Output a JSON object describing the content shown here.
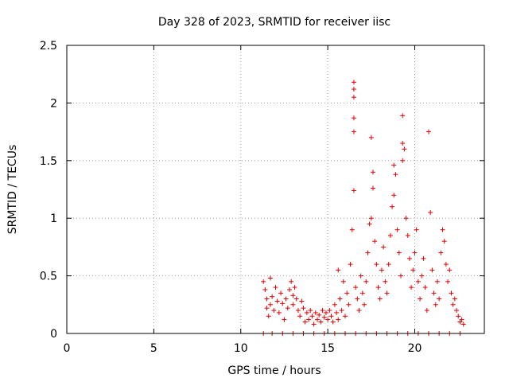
{
  "chart_data": {
    "type": "scatter",
    "title": "Day 328 of 2023, SRMTID for receiver iisc",
    "xlabel": "GPS time / hours",
    "ylabel": "SRMTID / TECUs",
    "xlim": [
      0,
      24
    ],
    "ylim": [
      0,
      2.5
    ],
    "xticks": [
      0,
      5,
      10,
      15,
      20
    ],
    "yticks": [
      0,
      0.5,
      1,
      1.5,
      2,
      2.5
    ],
    "xtick_labels": [
      "0",
      "5",
      "10",
      "15",
      "20"
    ],
    "ytick_labels": [
      "0",
      "0.5",
      "1",
      "1.5",
      "2",
      "2.5"
    ],
    "grid": true,
    "marker": "+",
    "color": "#e00000",
    "series": [
      {
        "name": "SRMTID",
        "points": [
          [
            11.3,
            0.45
          ],
          [
            11.4,
            0.38
          ],
          [
            11.5,
            0.3
          ],
          [
            11.5,
            0.22
          ],
          [
            11.6,
            0.15
          ],
          [
            11.7,
            0.48
          ],
          [
            11.7,
            0.25
          ],
          [
            11.8,
            0.32
          ],
          [
            11.9,
            0.2
          ],
          [
            12.0,
            0.4
          ],
          [
            12.1,
            0.28
          ],
          [
            12.2,
            0.18
          ],
          [
            12.3,
            0.35
          ],
          [
            12.4,
            0.26
          ],
          [
            12.5,
            0.12
          ],
          [
            12.6,
            0.3
          ],
          [
            12.7,
            0.22
          ],
          [
            12.8,
            0.38
          ],
          [
            12.9,
            0.45
          ],
          [
            13.0,
            0.33
          ],
          [
            13.0,
            0.25
          ],
          [
            13.1,
            0.4
          ],
          [
            13.2,
            0.3
          ],
          [
            13.3,
            0.2
          ],
          [
            13.4,
            0.15
          ],
          [
            13.5,
            0.28
          ],
          [
            13.6,
            0.22
          ],
          [
            13.7,
            0.1
          ],
          [
            13.8,
            0.18
          ],
          [
            13.9,
            0.12
          ],
          [
            14.0,
            0.2
          ],
          [
            14.1,
            0.15
          ],
          [
            14.2,
            0.08
          ],
          [
            14.3,
            0.18
          ],
          [
            14.4,
            0.12
          ],
          [
            14.5,
            0.16
          ],
          [
            14.6,
            0.1
          ],
          [
            14.7,
            0.2
          ],
          [
            14.8,
            0.14
          ],
          [
            14.9,
            0.18
          ],
          [
            15.0,
            0.12
          ],
          [
            15.1,
            0.2
          ],
          [
            15.2,
            0.15
          ],
          [
            15.3,
            0.1
          ],
          [
            15.4,
            0.25
          ],
          [
            15.5,
            0.18
          ],
          [
            15.6,
            0.12
          ],
          [
            15.6,
            0.55
          ],
          [
            15.7,
            0.3
          ],
          [
            15.8,
            0.2
          ],
          [
            15.9,
            0.45
          ],
          [
            16.0,
            0.15
          ],
          [
            16.1,
            0.35
          ],
          [
            16.2,
            0.25
          ],
          [
            16.3,
            0.6
          ],
          [
            16.4,
            0.9
          ],
          [
            16.5,
            1.24
          ],
          [
            16.5,
            1.75
          ],
          [
            16.5,
            1.87
          ],
          [
            16.5,
            2.05
          ],
          [
            16.5,
            2.12
          ],
          [
            16.5,
            2.18
          ],
          [
            16.6,
            0.4
          ],
          [
            16.7,
            0.3
          ],
          [
            16.8,
            0.2
          ],
          [
            16.9,
            0.5
          ],
          [
            17.0,
            0.35
          ],
          [
            17.1,
            0.25
          ],
          [
            17.2,
            0.45
          ],
          [
            17.3,
            0.7
          ],
          [
            17.4,
            0.95
          ],
          [
            17.5,
            1.0
          ],
          [
            17.5,
            1.7
          ],
          [
            17.6,
            1.4
          ],
          [
            17.6,
            1.26
          ],
          [
            17.7,
            0.8
          ],
          [
            17.8,
            0.6
          ],
          [
            17.9,
            0.4
          ],
          [
            18.0,
            0.3
          ],
          [
            18.1,
            0.55
          ],
          [
            18.2,
            0.75
          ],
          [
            18.3,
            0.45
          ],
          [
            18.4,
            0.35
          ],
          [
            18.5,
            0.6
          ],
          [
            18.6,
            0.85
          ],
          [
            18.7,
            1.1
          ],
          [
            18.8,
            1.2
          ],
          [
            18.8,
            1.46
          ],
          [
            18.9,
            1.38
          ],
          [
            19.0,
            0.9
          ],
          [
            19.1,
            0.7
          ],
          [
            19.2,
            0.5
          ],
          [
            19.3,
            1.5
          ],
          [
            19.3,
            1.65
          ],
          [
            19.3,
            1.89
          ],
          [
            19.4,
            1.6
          ],
          [
            19.5,
            1.0
          ],
          [
            19.6,
            0.85
          ],
          [
            19.7,
            0.65
          ],
          [
            19.8,
            0.4
          ],
          [
            19.9,
            0.55
          ],
          [
            20.0,
            0.7
          ],
          [
            20.1,
            0.9
          ],
          [
            20.2,
            0.45
          ],
          [
            20.3,
            0.3
          ],
          [
            20.4,
            0.5
          ],
          [
            20.5,
            0.65
          ],
          [
            20.6,
            0.4
          ],
          [
            20.7,
            0.2
          ],
          [
            20.8,
            1.75
          ],
          [
            20.9,
            1.05
          ],
          [
            21.0,
            0.55
          ],
          [
            21.1,
            0.35
          ],
          [
            21.2,
            0.25
          ],
          [
            21.3,
            0.45
          ],
          [
            21.4,
            0.3
          ],
          [
            21.5,
            0.7
          ],
          [
            21.6,
            0.9
          ],
          [
            21.7,
            0.8
          ],
          [
            21.8,
            0.6
          ],
          [
            21.9,
            0.45
          ],
          [
            22.0,
            0.55
          ],
          [
            22.1,
            0.35
          ],
          [
            22.2,
            0.25
          ],
          [
            22.3,
            0.3
          ],
          [
            22.4,
            0.2
          ],
          [
            22.5,
            0.15
          ],
          [
            22.6,
            0.1
          ],
          [
            22.7,
            0.12
          ],
          [
            22.8,
            0.08
          ],
          [
            11.3,
            0.0
          ],
          [
            11.8,
            0.0
          ],
          [
            12.4,
            0.0
          ],
          [
            13.0,
            0.0
          ],
          [
            13.6,
            0.0
          ],
          [
            14.2,
            0.0
          ],
          [
            14.8,
            0.0
          ],
          [
            15.4,
            0.0
          ],
          [
            16.0,
            0.0
          ],
          [
            16.6,
            0.0
          ],
          [
            17.2,
            0.0
          ],
          [
            17.8,
            0.0
          ],
          [
            18.4,
            0.0
          ],
          [
            19.0,
            0.0
          ],
          [
            19.6,
            0.0
          ],
          [
            20.2,
            0.0
          ],
          [
            20.8,
            0.0
          ],
          [
            21.4,
            0.0
          ],
          [
            22.0,
            0.0
          ],
          [
            22.6,
            0.0
          ]
        ]
      }
    ]
  }
}
